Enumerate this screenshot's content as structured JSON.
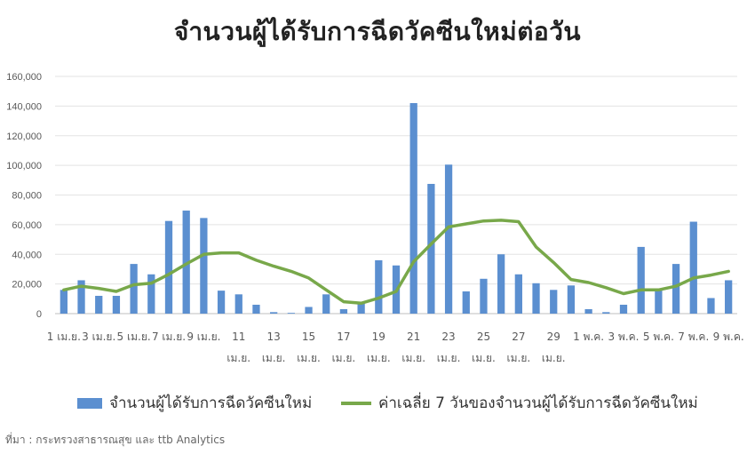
{
  "title": "จำนวนผู้ได้รับการฉีดวัคซีนใหม่ต่อวัน",
  "source": "ที่มา : กระทรวงสาธารณสุข และ ttb Analytics",
  "chart_data": {
    "type": "bar",
    "title": "จำนวนผู้ได้รับการฉีดวัคซีนใหม่ต่อวัน",
    "ylim": [
      0,
      160000
    ],
    "yticks": [
      "0",
      "20,000",
      "40,000",
      "60,000",
      "80,000",
      "100,000",
      "120,000",
      "140,000",
      "160,000"
    ],
    "grid": true,
    "legend_position": "bottom",
    "x_labels": [
      {
        "index": 0,
        "lines": [
          "1 เม.ย."
        ]
      },
      {
        "index": 2,
        "lines": [
          "3 เม.ย."
        ]
      },
      {
        "index": 4,
        "lines": [
          "5 เม.ย."
        ]
      },
      {
        "index": 6,
        "lines": [
          "7 เม.ย."
        ]
      },
      {
        "index": 8,
        "lines": [
          "9 เม.ย."
        ]
      },
      {
        "index": 10,
        "lines": [
          "11",
          "เม.ย."
        ]
      },
      {
        "index": 12,
        "lines": [
          "13",
          "เม.ย."
        ]
      },
      {
        "index": 14,
        "lines": [
          "15",
          "เม.ย."
        ]
      },
      {
        "index": 16,
        "lines": [
          "17",
          "เม.ย."
        ]
      },
      {
        "index": 18,
        "lines": [
          "19",
          "เม.ย."
        ]
      },
      {
        "index": 20,
        "lines": [
          "21",
          "เม.ย."
        ]
      },
      {
        "index": 22,
        "lines": [
          "23",
          "เม.ย."
        ]
      },
      {
        "index": 24,
        "lines": [
          "25",
          "เม.ย."
        ]
      },
      {
        "index": 26,
        "lines": [
          "27",
          "เม.ย."
        ]
      },
      {
        "index": 28,
        "lines": [
          "29",
          "เม.ย."
        ]
      },
      {
        "index": 30,
        "lines": [
          "1 พ.ค."
        ]
      },
      {
        "index": 32,
        "lines": [
          "3 พ.ค."
        ]
      },
      {
        "index": 34,
        "lines": [
          "5 พ.ค."
        ]
      },
      {
        "index": 36,
        "lines": [
          "7 พ.ค."
        ]
      },
      {
        "index": 38,
        "lines": [
          "9 พ.ค."
        ]
      }
    ],
    "series": [
      {
        "name": "จำนวนผู้ได้รับการฉีดวัคซีนใหม่",
        "type": "bar",
        "color": "#5b8fd0",
        "values": [
          16000,
          22500,
          12000,
          12000,
          33500,
          26500,
          62500,
          69500,
          64500,
          15500,
          13000,
          6000,
          1000,
          500,
          4500,
          13000,
          3000,
          8000,
          36000,
          32500,
          142000,
          87500,
          100500,
          15000,
          23500,
          40000,
          26500,
          20500,
          16000,
          19000,
          3000,
          1000,
          6000,
          45000,
          17000,
          33500,
          62000,
          10500,
          22500
        ]
      },
      {
        "name": "ค่าเฉลี่ย 7 วันของจำนวนผู้ได้รับการฉีดวัคซีนใหม่",
        "type": "line",
        "color": "#78a84a",
        "values": [
          16000,
          18500,
          17000,
          15000,
          19500,
          20500,
          26500,
          33500,
          40000,
          41000,
          41000,
          36000,
          32000,
          28500,
          24000,
          16000,
          8000,
          7000,
          10500,
          15000,
          35000,
          47000,
          58500,
          60500,
          62500,
          63000,
          62000,
          45000,
          34500,
          23000,
          21000,
          17500,
          13500,
          16000,
          16000,
          18500,
          24000,
          26000,
          28500
        ]
      }
    ]
  }
}
